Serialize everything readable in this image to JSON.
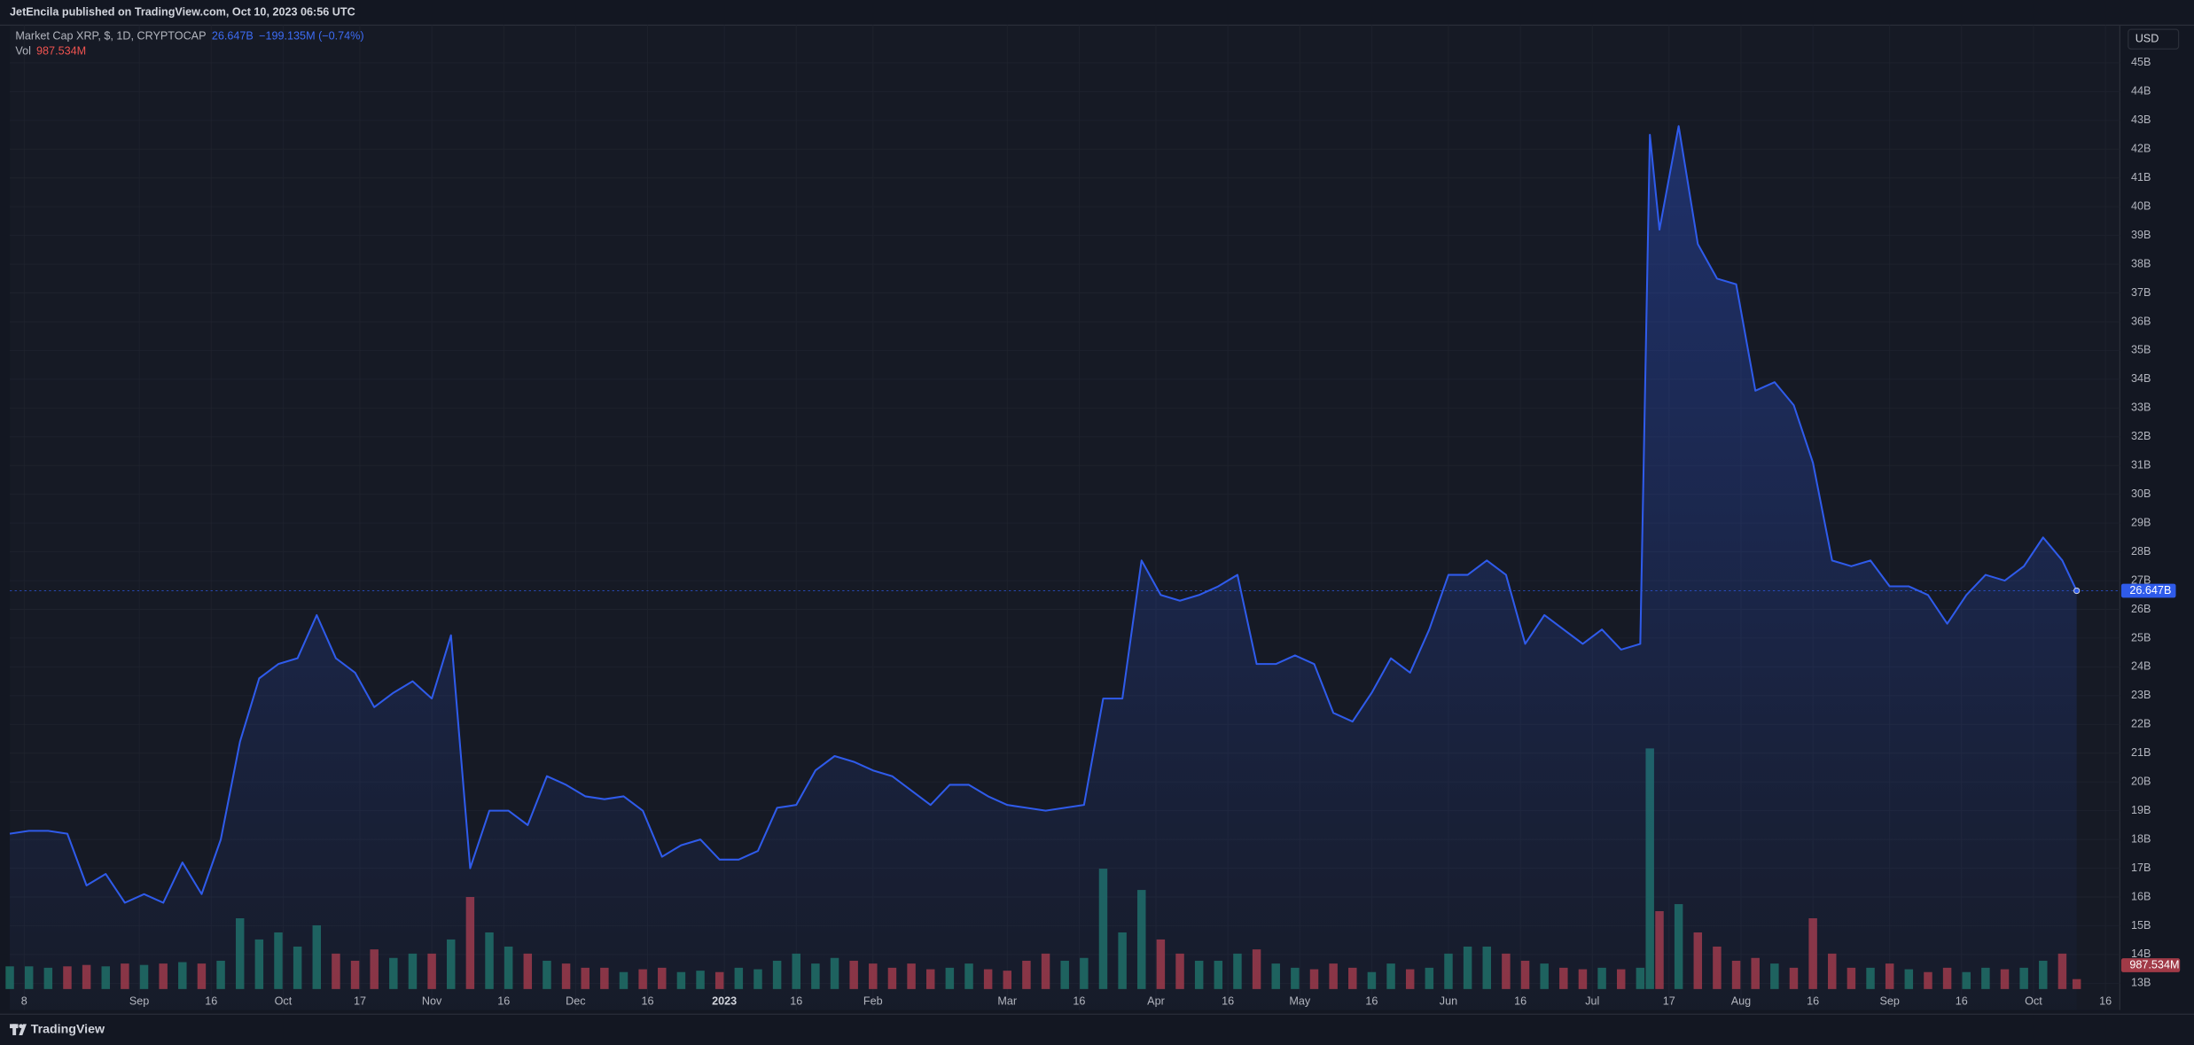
{
  "header": {
    "publisher": "JetEncila published on TradingView.com, Oct 10, 2023 06:56 UTC"
  },
  "footer": {
    "brand": "TradingView"
  },
  "chart_data": {
    "type": "line",
    "title": "Market Cap XRP, $, 1D, CRYPTOCAP",
    "change_label": "−199.135M (−0.74%)",
    "currency": "USD",
    "grid": true,
    "area": true,
    "x": [
      "2022-08-05",
      "2022-08-09",
      "2022-08-13",
      "2022-08-17",
      "2022-08-21",
      "2022-08-25",
      "2022-08-29",
      "2022-09-02",
      "2022-09-06",
      "2022-09-10",
      "2022-09-14",
      "2022-09-18",
      "2022-09-22",
      "2022-09-26",
      "2022-09-30",
      "2022-10-04",
      "2022-10-08",
      "2022-10-12",
      "2022-10-16",
      "2022-10-20",
      "2022-10-24",
      "2022-10-28",
      "2022-11-01",
      "2022-11-05",
      "2022-11-09",
      "2022-11-13",
      "2022-11-17",
      "2022-11-21",
      "2022-11-25",
      "2022-11-29",
      "2022-12-03",
      "2022-12-07",
      "2022-12-11",
      "2022-12-15",
      "2022-12-19",
      "2022-12-23",
      "2022-12-27",
      "2022-12-31",
      "2023-01-04",
      "2023-01-08",
      "2023-01-12",
      "2023-01-16",
      "2023-01-20",
      "2023-01-24",
      "2023-01-28",
      "2023-02-01",
      "2023-02-05",
      "2023-02-09",
      "2023-02-13",
      "2023-02-17",
      "2023-02-21",
      "2023-02-25",
      "2023-03-01",
      "2023-03-05",
      "2023-03-09",
      "2023-03-13",
      "2023-03-17",
      "2023-03-21",
      "2023-03-25",
      "2023-03-29",
      "2023-04-02",
      "2023-04-06",
      "2023-04-10",
      "2023-04-14",
      "2023-04-18",
      "2023-04-22",
      "2023-04-26",
      "2023-04-30",
      "2023-05-04",
      "2023-05-08",
      "2023-05-12",
      "2023-05-16",
      "2023-05-20",
      "2023-05-24",
      "2023-05-28",
      "2023-06-01",
      "2023-06-05",
      "2023-06-09",
      "2023-06-13",
      "2023-06-17",
      "2023-06-21",
      "2023-06-25",
      "2023-06-29",
      "2023-07-03",
      "2023-07-07",
      "2023-07-11",
      "2023-07-13",
      "2023-07-15",
      "2023-07-19",
      "2023-07-23",
      "2023-07-27",
      "2023-07-31",
      "2023-08-04",
      "2023-08-08",
      "2023-08-12",
      "2023-08-16",
      "2023-08-20",
      "2023-08-24",
      "2023-08-28",
      "2023-09-01",
      "2023-09-05",
      "2023-09-09",
      "2023-09-13",
      "2023-09-17",
      "2023-09-21",
      "2023-09-25",
      "2023-09-29",
      "2023-10-03",
      "2023-10-07",
      "2023-10-10"
    ],
    "series": [
      {
        "name": "Market Cap XRP, $, 1D, CRYPTOCAP",
        "color": "#2f5bea",
        "last_label": "26.647B",
        "values": [
          18.2,
          18.3,
          18.3,
          18.2,
          16.4,
          16.8,
          15.8,
          16.1,
          15.8,
          17.2,
          16.1,
          18.0,
          21.4,
          23.6,
          24.1,
          24.3,
          25.8,
          24.3,
          23.8,
          22.6,
          23.1,
          23.5,
          22.9,
          25.1,
          17.0,
          19.0,
          19.0,
          18.5,
          20.2,
          19.9,
          19.5,
          19.4,
          19.5,
          19.0,
          17.4,
          17.8,
          18.0,
          17.3,
          17.3,
          17.6,
          19.1,
          19.2,
          20.4,
          20.9,
          20.7,
          20.4,
          20.2,
          19.7,
          19.2,
          19.9,
          19.9,
          19.5,
          19.2,
          19.1,
          19.0,
          19.1,
          19.2,
          22.9,
          22.9,
          27.7,
          26.5,
          26.3,
          26.5,
          26.8,
          27.2,
          24.1,
          24.1,
          24.4,
          24.1,
          22.4,
          22.1,
          23.1,
          24.3,
          23.8,
          25.3,
          27.2,
          27.2,
          27.7,
          27.2,
          24.8,
          25.8,
          25.3,
          24.8,
          25.3,
          24.6,
          24.8,
          42.5,
          39.2,
          42.8,
          38.7,
          37.5,
          37.3,
          33.6,
          33.9,
          33.1,
          31.1,
          27.7,
          27.5,
          27.7,
          26.8,
          26.8,
          26.5,
          25.5,
          26.5,
          27.2,
          27.0,
          27.5,
          28.5,
          27.7,
          26.647
        ]
      },
      {
        "name": "Vol",
        "type": "volume",
        "up_color": "#1e7064",
        "down_color": "#a13a47",
        "last_label": "987.534M",
        "values": [
          2260,
          2260,
          2120,
          2260,
          2400,
          2260,
          2540,
          2400,
          2540,
          2680,
          2540,
          2820,
          7050,
          4940,
          5640,
          4230,
          6350,
          3530,
          2820,
          3950,
          3100,
          3530,
          3530,
          4940,
          9170,
          5640,
          4230,
          3530,
          2820,
          2540,
          2120,
          2120,
          1690,
          1970,
          2120,
          1690,
          1830,
          1690,
          2120,
          1970,
          2820,
          3530,
          2540,
          3100,
          2820,
          2540,
          2120,
          2540,
          1970,
          2120,
          2540,
          1970,
          1830,
          2820,
          3530,
          2820,
          3100,
          11990,
          5640,
          9870,
          4940,
          3530,
          2820,
          2820,
          3530,
          3950,
          2540,
          2120,
          1970,
          2540,
          2120,
          1690,
          2540,
          1970,
          2120,
          3530,
          4230,
          4230,
          3530,
          2820,
          2540,
          2120,
          1970,
          2120,
          1970,
          2120,
          23970,
          7760,
          8460,
          5640,
          4230,
          2820,
          3100,
          2540,
          2120,
          7050,
          3530,
          2120,
          2120,
          2540,
          1970,
          1690,
          2120,
          1690,
          2120,
          1970,
          2120,
          2820,
          3530,
          987.534
        ]
      }
    ],
    "xlim": [
      "2022-08-05",
      "2023-10-19"
    ],
    "xticks": [
      {
        "value": "2022-08-08",
        "label": "8"
      },
      {
        "value": "2022-09-01",
        "label": "Sep"
      },
      {
        "value": "2022-09-16",
        "label": "16"
      },
      {
        "value": "2022-10-01",
        "label": "Oct"
      },
      {
        "value": "2022-10-17",
        "label": "17"
      },
      {
        "value": "2022-11-01",
        "label": "Nov"
      },
      {
        "value": "2022-11-16",
        "label": "16"
      },
      {
        "value": "2022-12-01",
        "label": "Dec"
      },
      {
        "value": "2022-12-16",
        "label": "16"
      },
      {
        "value": "2023-01-01",
        "label": "2023"
      },
      {
        "value": "2023-01-16",
        "label": "16"
      },
      {
        "value": "2023-02-01",
        "label": "Feb"
      },
      {
        "value": "2023-03-01",
        "label": "Mar"
      },
      {
        "value": "2023-03-16",
        "label": "16"
      },
      {
        "value": "2023-04-01",
        "label": "Apr"
      },
      {
        "value": "2023-04-16",
        "label": "16"
      },
      {
        "value": "2023-05-01",
        "label": "May"
      },
      {
        "value": "2023-05-16",
        "label": "16"
      },
      {
        "value": "2023-06-01",
        "label": "Jun"
      },
      {
        "value": "2023-06-16",
        "label": "16"
      },
      {
        "value": "2023-07-01",
        "label": "Jul"
      },
      {
        "value": "2023-07-17",
        "label": "17"
      },
      {
        "value": "2023-08-01",
        "label": "Aug"
      },
      {
        "value": "2023-08-16",
        "label": "16"
      },
      {
        "value": "2023-09-01",
        "label": "Sep"
      },
      {
        "value": "2023-09-16",
        "label": "16"
      },
      {
        "value": "2023-10-01",
        "label": "Oct"
      },
      {
        "value": "2023-10-16",
        "label": "16"
      }
    ],
    "ylim": [
      12.07,
      46.31
    ],
    "yticks": [
      {
        "value": 13,
        "label": "13B"
      },
      {
        "value": 14,
        "label": "14B"
      },
      {
        "value": 15,
        "label": "15B"
      },
      {
        "value": 16,
        "label": "16B"
      },
      {
        "value": 17,
        "label": "17B"
      },
      {
        "value": 18,
        "label": "18B"
      },
      {
        "value": 19,
        "label": "19B"
      },
      {
        "value": 20,
        "label": "20B"
      },
      {
        "value": 21,
        "label": "21B"
      },
      {
        "value": 22,
        "label": "22B"
      },
      {
        "value": 23,
        "label": "23B"
      },
      {
        "value": 24,
        "label": "24B"
      },
      {
        "value": 25,
        "label": "25B"
      },
      {
        "value": 26,
        "label": "26B"
      },
      {
        "value": 27,
        "label": "27B"
      },
      {
        "value": 28,
        "label": "28B"
      },
      {
        "value": 29,
        "label": "29B"
      },
      {
        "value": 30,
        "label": "30B"
      },
      {
        "value": 31,
        "label": "31B"
      },
      {
        "value": 32,
        "label": "32B"
      },
      {
        "value": 33,
        "label": "33B"
      },
      {
        "value": 34,
        "label": "34B"
      },
      {
        "value": 35,
        "label": "35B"
      },
      {
        "value": 36,
        "label": "36B"
      },
      {
        "value": 37,
        "label": "37B"
      },
      {
        "value": 38,
        "label": "38B"
      },
      {
        "value": 39,
        "label": "39B"
      },
      {
        "value": 40,
        "label": "40B"
      },
      {
        "value": 41,
        "label": "41B"
      },
      {
        "value": 42,
        "label": "42B"
      },
      {
        "value": 43,
        "label": "43B"
      },
      {
        "value": 44,
        "label": "44B"
      },
      {
        "value": 45,
        "label": "45B"
      }
    ]
  }
}
